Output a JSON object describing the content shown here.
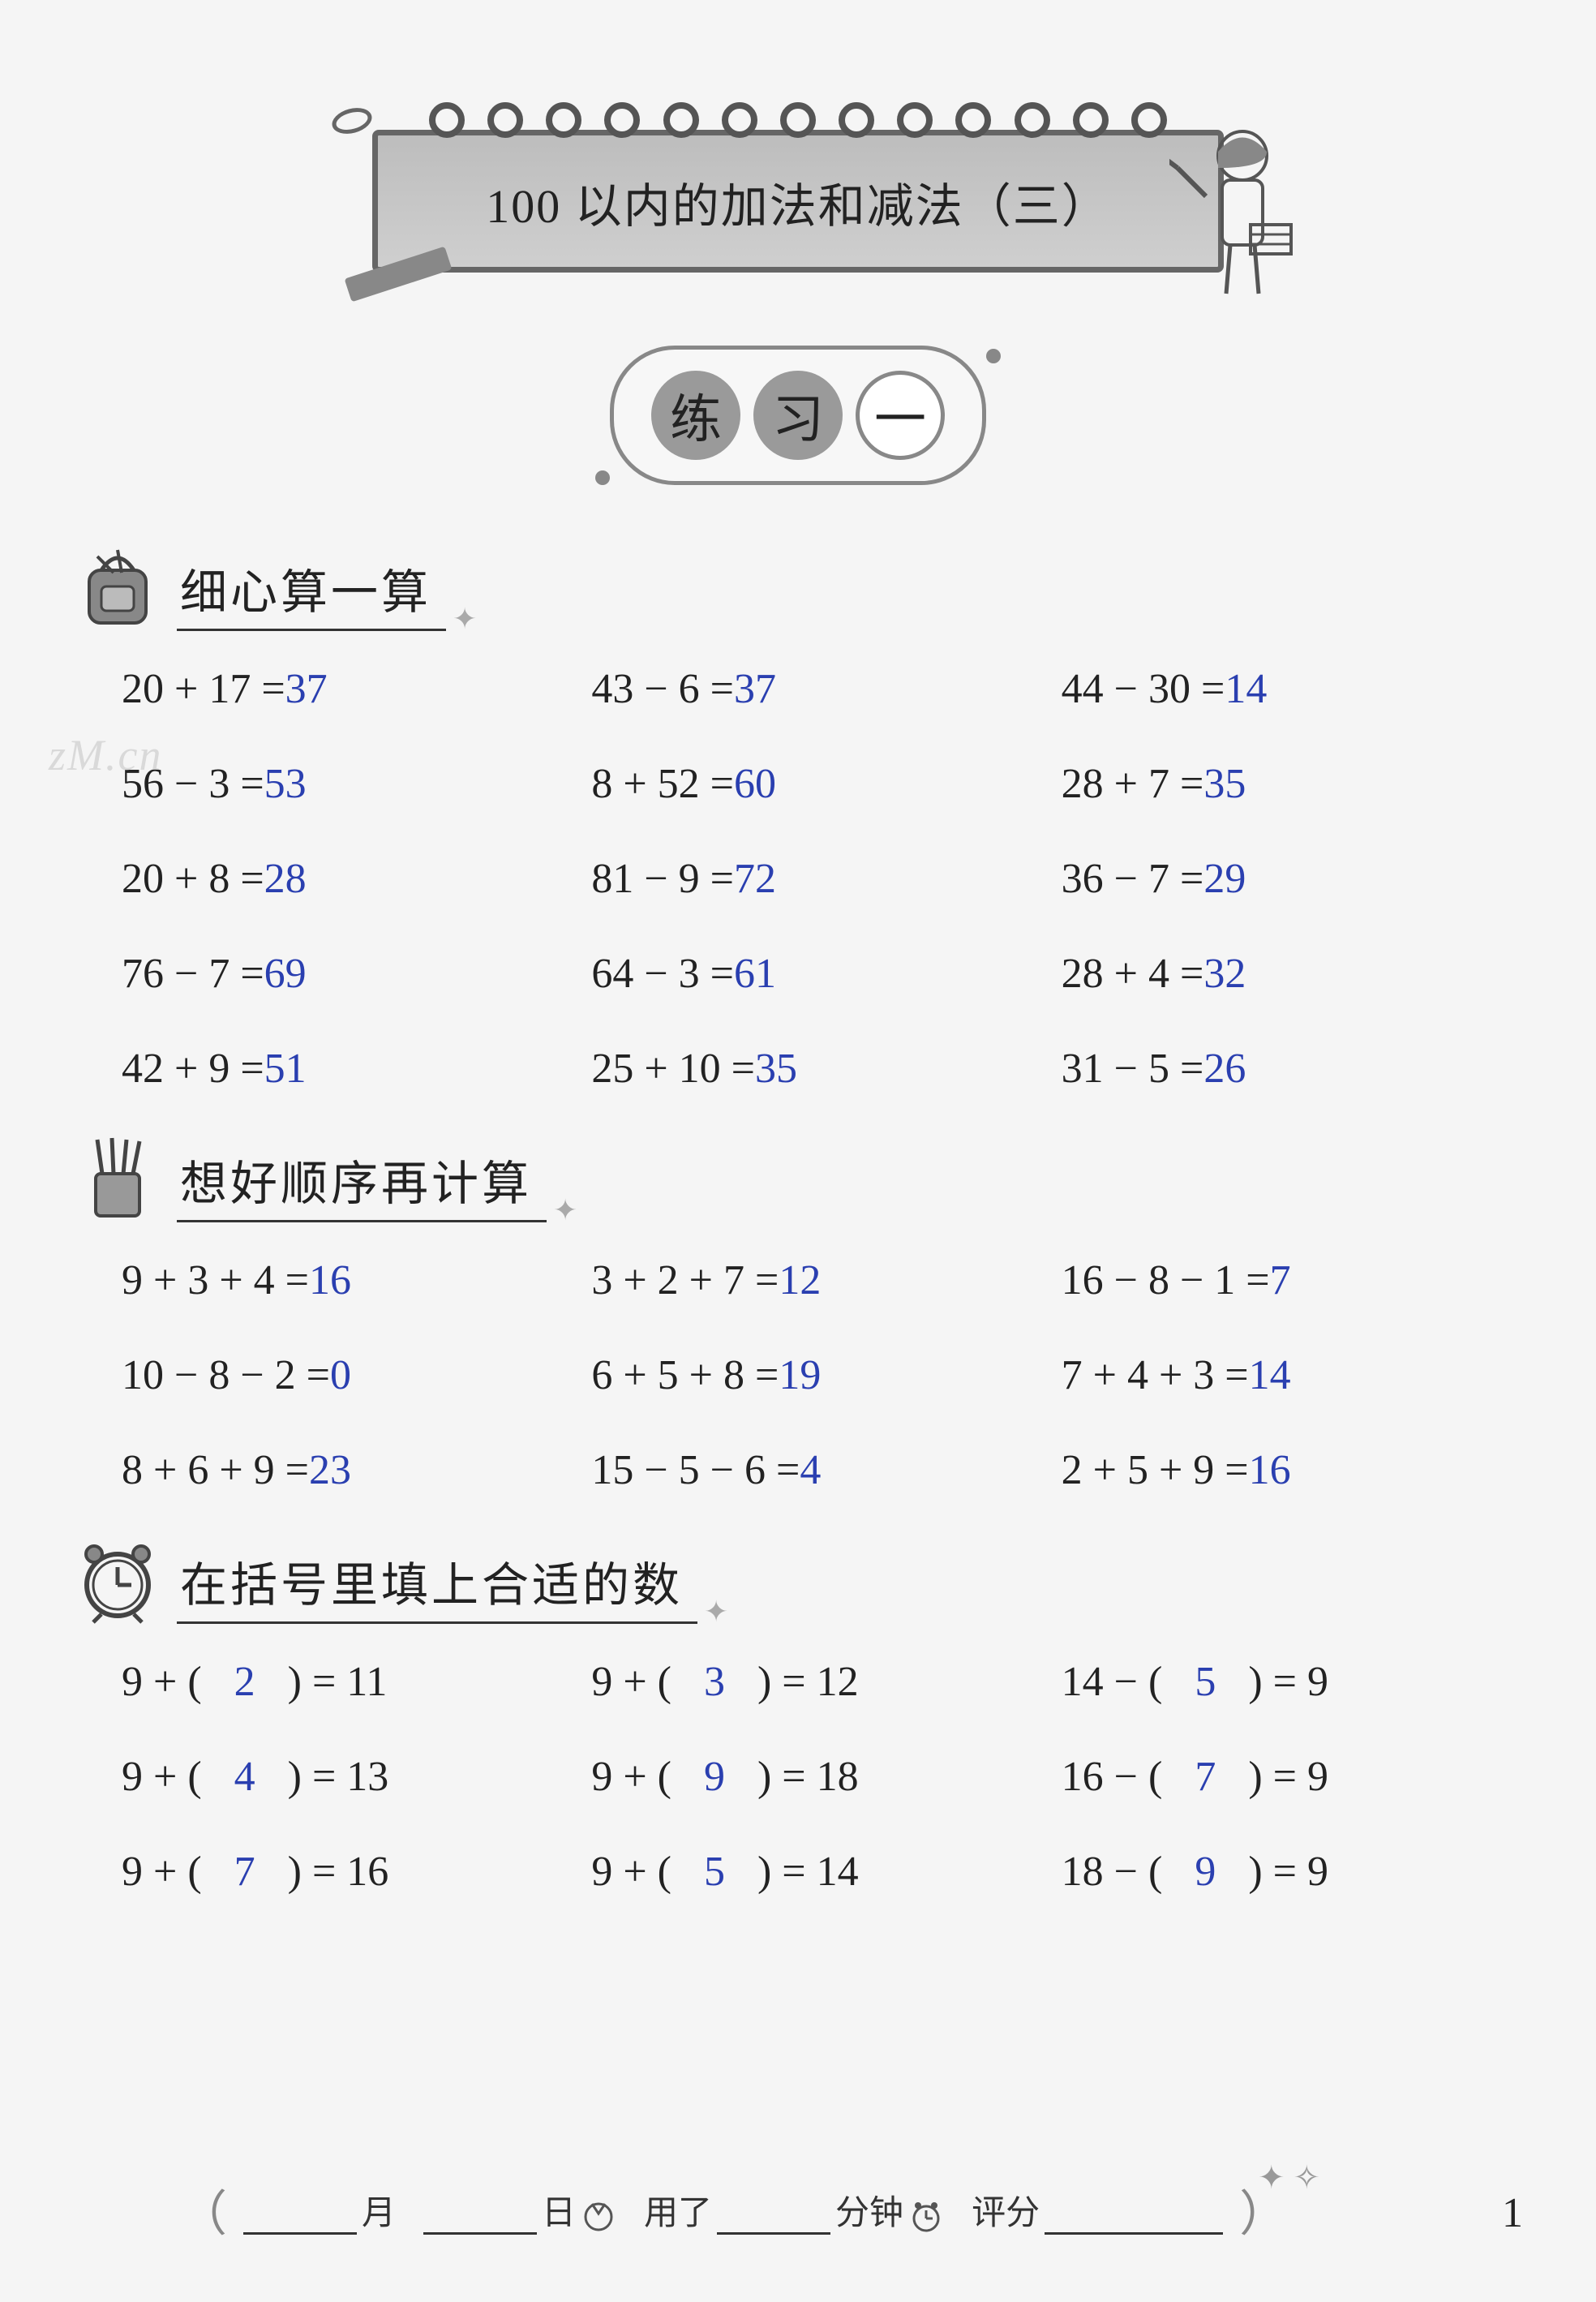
{
  "colors": {
    "answer": "#2a3fb0",
    "text": "#222222",
    "background": "#f5f5f5",
    "banner_fill": "#c4c4c4",
    "border": "#666666"
  },
  "typography": {
    "problem_fontsize_pt": 39,
    "title_fontsize_pt": 44,
    "section_fontsize_pt": 44
  },
  "chapter_title": "100 以内的加法和减法（三）",
  "practice_label": {
    "c1": "练",
    "c2": "习",
    "c3": "一"
  },
  "watermark": "zM.cn",
  "sections": [
    {
      "icon": "backpack-icon",
      "title": "细心算一算",
      "type": "direct",
      "rows": [
        [
          {
            "expr": "20 + 17 =",
            "ans": "37"
          },
          {
            "expr": "43 − 6 =",
            "ans": "37"
          },
          {
            "expr": "44 − 30 =",
            "ans": "14"
          }
        ],
        [
          {
            "expr": "56 − 3 =",
            "ans": "53"
          },
          {
            "expr": "8 + 52 =",
            "ans": "60"
          },
          {
            "expr": "28 + 7 =",
            "ans": "35"
          }
        ],
        [
          {
            "expr": "20 + 8 =",
            "ans": "28"
          },
          {
            "expr": "81 − 9 =",
            "ans": "72"
          },
          {
            "expr": "36 − 7 =",
            "ans": "29"
          }
        ],
        [
          {
            "expr": "76 − 7 =",
            "ans": "69"
          },
          {
            "expr": "64 − 3 =",
            "ans": "61"
          },
          {
            "expr": "28 + 4 =",
            "ans": "32"
          }
        ],
        [
          {
            "expr": "42 + 9 =",
            "ans": "51"
          },
          {
            "expr": "25 + 10 =",
            "ans": "35"
          },
          {
            "expr": "31 − 5 =",
            "ans": "26"
          }
        ]
      ]
    },
    {
      "icon": "pencil-cup-icon",
      "title": "想好顺序再计算",
      "type": "direct",
      "rows": [
        [
          {
            "expr": "9 + 3 + 4 =",
            "ans": "16"
          },
          {
            "expr": "3 + 2 + 7 =",
            "ans": "12"
          },
          {
            "expr": "16 − 8 − 1 =",
            "ans": "7"
          }
        ],
        [
          {
            "expr": "10 − 8 − 2 =",
            "ans": "0"
          },
          {
            "expr": "6 + 5 + 8 =",
            "ans": "19"
          },
          {
            "expr": "7 + 4 + 3 =",
            "ans": "14"
          }
        ],
        [
          {
            "expr": "8 + 6 + 9 =",
            "ans": "23"
          },
          {
            "expr": "15 − 5 − 6 =",
            "ans": "4"
          },
          {
            "expr": "2 + 5 + 9 =",
            "ans": "16"
          }
        ]
      ]
    },
    {
      "icon": "alarm-clock-icon",
      "title": "在括号里填上合适的数",
      "type": "fill",
      "rows": [
        [
          {
            "pre": "9 + (",
            "fill": "2",
            "post": ") = 11"
          },
          {
            "pre": "9 + (",
            "fill": "3",
            "post": ") = 12"
          },
          {
            "pre": "14 − (",
            "fill": "5",
            "post": ") = 9"
          }
        ],
        [
          {
            "pre": "9 + (",
            "fill": "4",
            "post": ") = 13"
          },
          {
            "pre": "9 + (",
            "fill": "9",
            "post": ") = 18"
          },
          {
            "pre": "16 − (",
            "fill": "7",
            "post": ") = 9"
          }
        ],
        [
          {
            "pre": "9 + (",
            "fill": "7",
            "post": ") = 16"
          },
          {
            "pre": "9 + (",
            "fill": "5",
            "post": ") = 14"
          },
          {
            "pre": "18 − (",
            "fill": "9",
            "post": ") = 9"
          }
        ]
      ]
    }
  ],
  "footer": {
    "month_label": "月",
    "day_label": "日",
    "used_label": "用了",
    "minutes_label": "分钟",
    "score_label": "评分"
  },
  "page_number": "1"
}
